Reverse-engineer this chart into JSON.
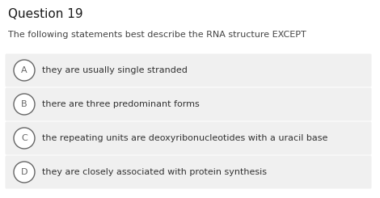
{
  "title": "Question 19",
  "question": "The following statements best describe the RNA structure EXCEPT",
  "options": [
    {
      "label": "A",
      "text": "they are usually single stranded"
    },
    {
      "label": "B",
      "text": "there are three predominant forms"
    },
    {
      "label": "C",
      "text": "the repeating units are deoxyribonucleotides with a uracil base"
    },
    {
      "label": "D",
      "text": "they are closely associated with protein synthesis"
    }
  ],
  "background_color": "#ffffff",
  "option_bg_color": "#f0f0f0",
  "title_fontsize": 11,
  "question_fontsize": 8.0,
  "option_fontsize": 8.0,
  "label_fontsize": 8.0,
  "title_color": "#1a1a1a",
  "question_color": "#444444",
  "option_text_color": "#333333",
  "circle_edge_color": "#666666",
  "circle_face_color": "#ffffff"
}
